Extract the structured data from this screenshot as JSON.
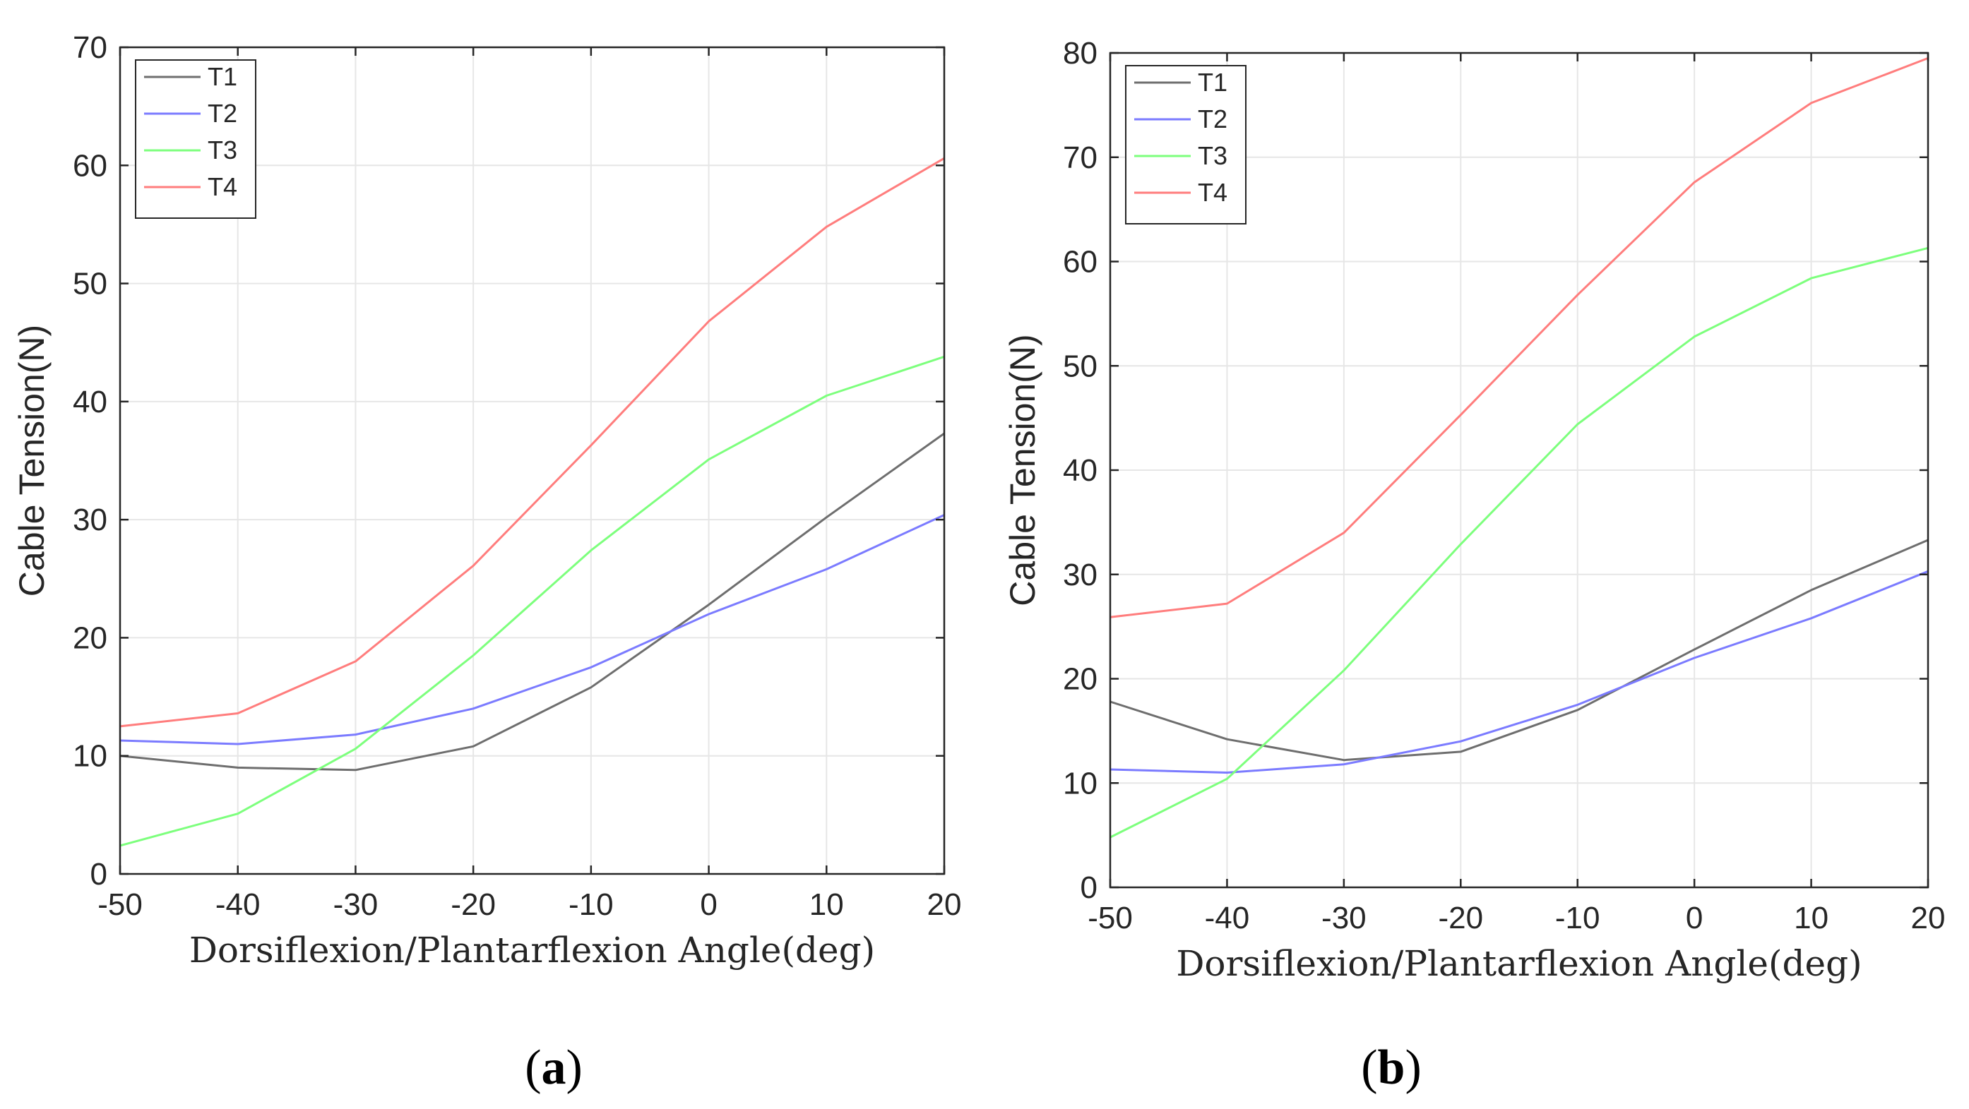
{
  "chart_data": [
    {
      "type": "line",
      "panel_label": "a",
      "title": "",
      "xlabel": "Dorsiflexion/Plantarflexion Angle(deg)",
      "ylabel": "Cable Tension(N)",
      "xlim": [
        -50,
        20
      ],
      "ylim": [
        0,
        70
      ],
      "xticks": [
        -50,
        -40,
        -30,
        -20,
        -10,
        0,
        10,
        20
      ],
      "yticks": [
        0,
        10,
        20,
        30,
        40,
        50,
        60,
        70
      ],
      "grid": true,
      "legend_position": "top-left",
      "x": [
        -50,
        -40,
        -30,
        -20,
        -10,
        0,
        10,
        20
      ],
      "series": [
        {
          "name": "T1",
          "color": "#6e6e6e",
          "values": [
            10.0,
            9.0,
            8.8,
            10.8,
            15.8,
            22.8,
            30.2,
            37.3
          ]
        },
        {
          "name": "T2",
          "color": "#7b7bff",
          "values": [
            11.3,
            11.0,
            11.8,
            14.0,
            17.5,
            22.0,
            25.8,
            30.4
          ]
        },
        {
          "name": "T3",
          "color": "#7dff7d",
          "values": [
            2.4,
            5.1,
            10.6,
            18.5,
            27.4,
            35.1,
            40.5,
            43.8
          ]
        },
        {
          "name": "T4",
          "color": "#ff7d7d",
          "values": [
            12.5,
            13.6,
            18.0,
            26.1,
            36.3,
            46.8,
            54.8,
            60.6
          ]
        }
      ]
    },
    {
      "type": "line",
      "panel_label": "b",
      "title": "",
      "xlabel": "Dorsiflexion/Plantarflexion Angle(deg)",
      "ylabel": "Cable Tension(N)",
      "xlim": [
        -50,
        20
      ],
      "ylim": [
        0,
        80
      ],
      "xticks": [
        -50,
        -40,
        -30,
        -20,
        -10,
        0,
        10,
        20
      ],
      "yticks": [
        0,
        10,
        20,
        30,
        40,
        50,
        60,
        70,
        80
      ],
      "grid": true,
      "legend_position": "top-left",
      "x": [
        -50,
        -40,
        -30,
        -20,
        -10,
        0,
        10,
        20
      ],
      "series": [
        {
          "name": "T1",
          "color": "#6e6e6e",
          "values": [
            17.8,
            14.2,
            12.2,
            13.0,
            17.0,
            22.8,
            28.5,
            33.3
          ]
        },
        {
          "name": "T2",
          "color": "#7b7bff",
          "values": [
            11.3,
            11.0,
            11.8,
            14.0,
            17.5,
            22.0,
            25.8,
            30.3
          ]
        },
        {
          "name": "T3",
          "color": "#7dff7d",
          "values": [
            4.8,
            10.4,
            20.8,
            32.9,
            44.4,
            52.8,
            58.4,
            61.3
          ]
        },
        {
          "name": "T4",
          "color": "#ff7d7d",
          "values": [
            25.9,
            27.2,
            34.0,
            45.3,
            56.8,
            67.6,
            75.2,
            79.5
          ]
        }
      ]
    }
  ]
}
